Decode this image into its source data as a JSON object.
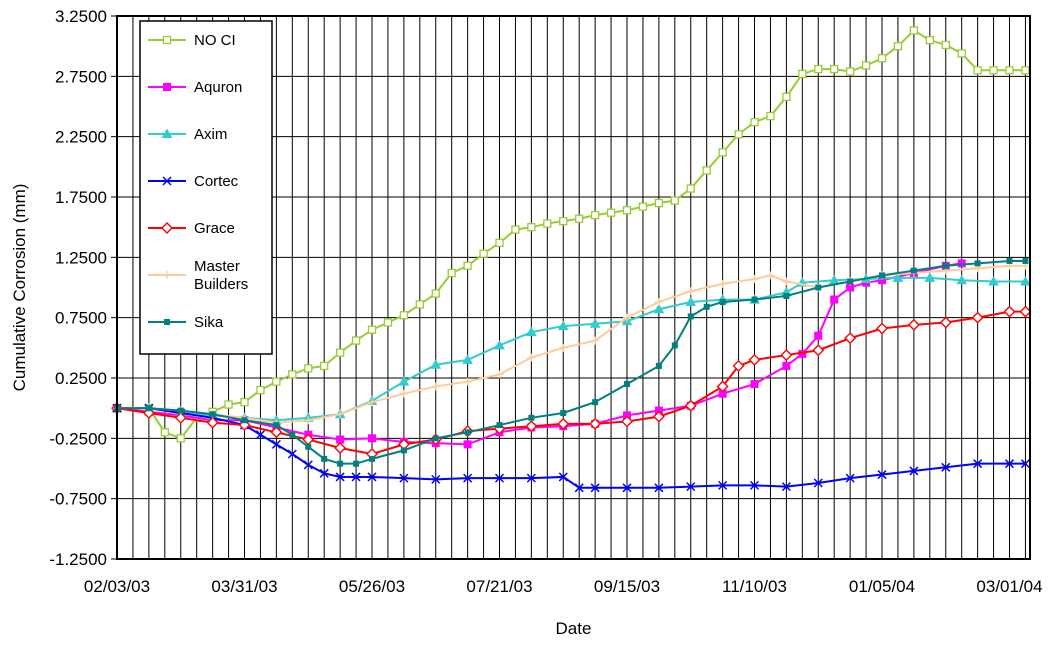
{
  "chart_data": {
    "type": "line",
    "xlabel": "Date",
    "ylabel": "Cumulative Corrosion (mm)",
    "x_tick_labels": [
      "02/03/03",
      "03/31/03",
      "05/26/03",
      "07/21/03",
      "09/15/03",
      "11/10/03",
      "01/05/04",
      "03/01/04"
    ],
    "y_tick_labels": [
      "3.2500",
      "2.7500",
      "2.2500",
      "1.7500",
      "1.2500",
      "0.7500",
      "0.2500",
      "-0.2500",
      "-0.7500",
      "-1.2500"
    ],
    "x_range": [
      "02/03/03",
      "03/10/04"
    ],
    "ylim": [
      -1.25,
      3.25
    ],
    "grid": "major gridlines",
    "legend_placement": "top-left",
    "series": [
      {
        "name": "NO CI",
        "color": "#99CC33",
        "marker": "square-open",
        "x": [
          "02/03/03",
          "02/17/03",
          "02/24/03",
          "03/03/03",
          "03/10/03",
          "03/17/03",
          "03/24/03",
          "03/31/03",
          "04/07/03",
          "04/14/03",
          "04/21/03",
          "04/28/03",
          "05/05/03",
          "05/12/03",
          "05/19/03",
          "05/26/03",
          "06/02/03",
          "06/09/03",
          "06/16/03",
          "06/23/03",
          "06/30/03",
          "07/07/03",
          "07/14/03",
          "07/21/03",
          "07/28/03",
          "08/04/03",
          "08/11/03",
          "08/18/03",
          "08/25/03",
          "09/01/03",
          "09/08/03",
          "09/15/03",
          "09/22/03",
          "09/29/03",
          "10/06/03",
          "10/13/03",
          "10/20/03",
          "10/27/03",
          "11/03/03",
          "11/10/03",
          "11/17/03",
          "11/24/03",
          "12/01/03",
          "12/08/03",
          "12/15/03",
          "12/22/03",
          "12/29/03",
          "01/05/04",
          "01/12/04",
          "01/19/04",
          "01/26/04",
          "02/02/04",
          "02/09/04",
          "02/16/04",
          "02/23/04",
          "03/01/04",
          "03/08/04"
        ],
        "y": [
          0.0,
          0.0,
          -0.2,
          -0.25,
          -0.08,
          -0.03,
          0.03,
          0.05,
          0.15,
          0.22,
          0.28,
          0.33,
          0.35,
          0.46,
          0.56,
          0.65,
          0.71,
          0.77,
          0.86,
          0.95,
          1.12,
          1.18,
          1.28,
          1.37,
          1.48,
          1.5,
          1.53,
          1.55,
          1.57,
          1.6,
          1.62,
          1.64,
          1.67,
          1.7,
          1.72,
          1.82,
          1.97,
          2.12,
          2.27,
          2.37,
          2.42,
          2.58,
          2.77,
          2.81,
          2.81,
          2.79,
          2.84,
          2.9,
          3.0,
          3.13,
          3.05,
          3.01,
          2.94,
          2.8,
          2.8,
          2.8,
          2.8
        ]
      },
      {
        "name": "Aquron",
        "color": "#FF00FF",
        "marker": "square",
        "x": [
          "02/03/03",
          "02/17/03",
          "03/03/03",
          "03/17/03",
          "03/31/03",
          "04/14/03",
          "04/28/03",
          "05/12/03",
          "05/26/03",
          "06/09/03",
          "06/23/03",
          "07/07/03",
          "07/21/03",
          "08/04/03",
          "08/18/03",
          "09/01/03",
          "09/15/03",
          "09/29/03",
          "10/13/03",
          "10/27/03",
          "11/10/03",
          "11/24/03",
          "12/01/03",
          "12/08/03",
          "12/15/03",
          "12/22/03",
          "12/29/03",
          "01/05/04",
          "01/19/04",
          "02/02/04",
          "02/09/04"
        ],
        "y": [
          0.0,
          -0.03,
          -0.06,
          -0.1,
          -0.1,
          -0.16,
          -0.22,
          -0.26,
          -0.25,
          -0.28,
          -0.29,
          -0.3,
          -0.2,
          -0.16,
          -0.15,
          -0.13,
          -0.06,
          -0.02,
          0.02,
          0.12,
          0.2,
          0.35,
          0.45,
          0.6,
          0.9,
          1.0,
          1.04,
          1.06,
          1.12,
          1.18,
          1.2
        ]
      },
      {
        "name": "Axim",
        "color": "#33CCCC",
        "marker": "triangle",
        "x": [
          "02/03/03",
          "02/17/03",
          "03/03/03",
          "03/17/03",
          "03/31/03",
          "04/14/03",
          "04/28/03",
          "05/12/03",
          "05/26/03",
          "06/09/03",
          "06/23/03",
          "07/07/03",
          "07/21/03",
          "08/04/03",
          "08/18/03",
          "09/01/03",
          "09/15/03",
          "09/29/03",
          "10/13/03",
          "10/27/03",
          "11/10/03",
          "11/24/03",
          "12/01/03",
          "12/15/03",
          "12/29/03",
          "01/12/04",
          "01/26/04",
          "02/09/04",
          "02/23/04",
          "03/08/04"
        ],
        "y": [
          0.0,
          0.0,
          -0.04,
          -0.06,
          -0.08,
          -0.1,
          -0.08,
          -0.05,
          0.06,
          0.22,
          0.36,
          0.4,
          0.52,
          0.63,
          0.68,
          0.7,
          0.72,
          0.82,
          0.88,
          0.9,
          0.9,
          0.96,
          1.04,
          1.06,
          1.07,
          1.08,
          1.08,
          1.06,
          1.05,
          1.05
        ]
      },
      {
        "name": "Cortec",
        "color": "#0000FF",
        "marker": "x",
        "x": [
          "02/03/03",
          "02/17/03",
          "03/03/03",
          "03/17/03",
          "03/31/03",
          "04/07/03",
          "04/14/03",
          "04/21/03",
          "04/28/03",
          "05/05/03",
          "05/12/03",
          "05/19/03",
          "05/26/03",
          "06/09/03",
          "06/23/03",
          "07/07/03",
          "07/21/03",
          "08/04/03",
          "08/18/03",
          "08/25/03",
          "09/01/03",
          "09/15/03",
          "09/29/03",
          "10/13/03",
          "10/27/03",
          "11/10/03",
          "11/24/03",
          "12/08/03",
          "12/22/03",
          "01/05/04",
          "01/19/04",
          "02/02/04",
          "02/16/04",
          "03/01/04",
          "03/08/04"
        ],
        "y": [
          0.0,
          0.0,
          -0.04,
          -0.08,
          -0.14,
          -0.22,
          -0.3,
          -0.38,
          -0.47,
          -0.54,
          -0.57,
          -0.57,
          -0.57,
          -0.58,
          -0.59,
          -0.58,
          -0.58,
          -0.58,
          -0.57,
          -0.66,
          -0.66,
          -0.66,
          -0.66,
          -0.65,
          -0.64,
          -0.64,
          -0.65,
          -0.62,
          -0.58,
          -0.55,
          -0.52,
          -0.49,
          -0.46,
          -0.46,
          -0.46
        ]
      },
      {
        "name": "Grace",
        "color": "#FF0000",
        "marker": "diamond-open",
        "x": [
          "02/03/03",
          "02/17/03",
          "03/03/03",
          "03/17/03",
          "03/31/03",
          "04/14/03",
          "04/28/03",
          "05/12/03",
          "05/26/03",
          "06/09/03",
          "06/23/03",
          "07/07/03",
          "07/21/03",
          "08/04/03",
          "08/18/03",
          "09/01/03",
          "09/15/03",
          "09/29/03",
          "10/13/03",
          "10/27/03",
          "11/03/03",
          "11/10/03",
          "11/24/03",
          "12/08/03",
          "12/22/03",
          "01/05/04",
          "01/19/04",
          "02/02/04",
          "02/16/04",
          "03/01/04",
          "03/08/04"
        ],
        "y": [
          0.0,
          -0.04,
          -0.08,
          -0.12,
          -0.14,
          -0.2,
          -0.26,
          -0.33,
          -0.38,
          -0.3,
          -0.26,
          -0.19,
          -0.17,
          -0.15,
          -0.13,
          -0.13,
          -0.11,
          -0.07,
          0.02,
          0.18,
          0.35,
          0.4,
          0.44,
          0.48,
          0.58,
          0.66,
          0.69,
          0.71,
          0.75,
          0.8,
          0.8
        ]
      },
      {
        "name": "Master Builders",
        "color": "#FFCC99",
        "marker": "plus",
        "x": [
          "02/03/03",
          "02/17/03",
          "03/03/03",
          "03/17/03",
          "03/31/03",
          "04/14/03",
          "04/28/03",
          "05/12/03",
          "05/26/03",
          "06/09/03",
          "06/23/03",
          "07/07/03",
          "07/21/03",
          "08/04/03",
          "08/18/03",
          "09/01/03",
          "09/15/03",
          "09/29/03",
          "10/13/03",
          "10/27/03",
          "11/10/03",
          "11/17/03",
          "11/24/03",
          "12/08/03",
          "12/22/03",
          "01/05/04",
          "01/19/04",
          "02/02/04",
          "02/16/04",
          "03/01/04",
          "03/08/04"
        ],
        "y": [
          0.0,
          0.0,
          -0.02,
          -0.05,
          -0.08,
          -0.12,
          -0.1,
          -0.05,
          0.05,
          0.12,
          0.18,
          0.22,
          0.28,
          0.42,
          0.5,
          0.56,
          0.75,
          0.88,
          0.97,
          1.03,
          1.07,
          1.1,
          1.05,
          1.0,
          1.05,
          1.1,
          1.12,
          1.14,
          1.16,
          1.18,
          1.18
        ]
      },
      {
        "name": "Sika",
        "color": "#008080",
        "marker": "square-small",
        "x": [
          "02/03/03",
          "02/17/03",
          "03/03/03",
          "03/17/03",
          "03/31/03",
          "04/14/03",
          "04/21/03",
          "04/28/03",
          "05/05/03",
          "05/12/03",
          "05/19/03",
          "05/26/03",
          "06/09/03",
          "06/23/03",
          "07/07/03",
          "07/21/03",
          "08/04/03",
          "08/18/03",
          "09/01/03",
          "09/15/03",
          "09/29/03",
          "10/06/03",
          "10/13/03",
          "10/20/03",
          "10/27/03",
          "11/10/03",
          "11/24/03",
          "12/08/03",
          "12/22/03",
          "01/05/04",
          "01/19/04",
          "02/02/04",
          "02/16/04",
          "03/01/04",
          "03/08/04"
        ],
        "y": [
          0.0,
          0.0,
          -0.02,
          -0.05,
          -0.1,
          -0.14,
          -0.22,
          -0.32,
          -0.42,
          -0.46,
          -0.46,
          -0.42,
          -0.35,
          -0.25,
          -0.2,
          -0.14,
          -0.08,
          -0.04,
          0.05,
          0.2,
          0.35,
          0.52,
          0.76,
          0.84,
          0.88,
          0.9,
          0.93,
          1.0,
          1.05,
          1.1,
          1.14,
          1.18,
          1.2,
          1.22,
          1.22
        ]
      }
    ]
  }
}
